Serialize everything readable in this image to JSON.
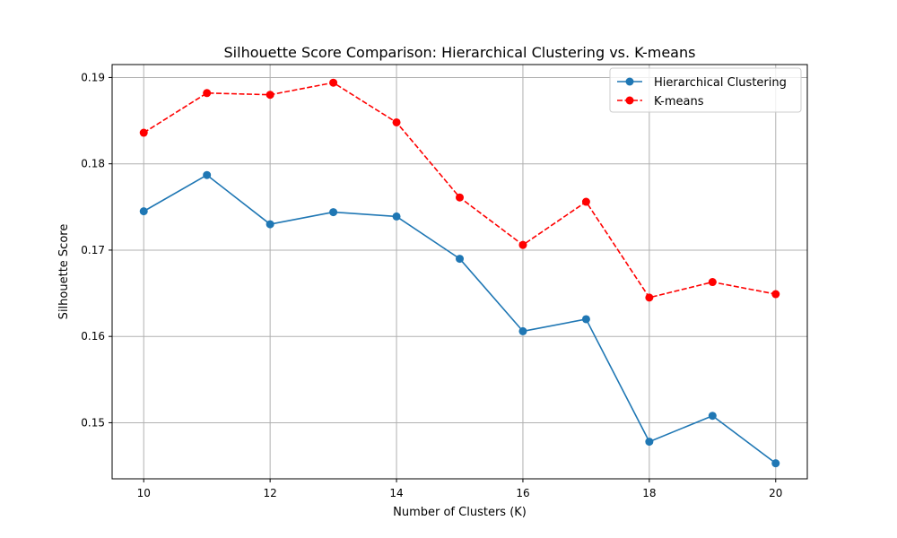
{
  "chart_data": {
    "type": "line",
    "title": "Silhouette Score Comparison: Hierarchical Clustering vs. K-means",
    "xlabel": "Number of Clusters (K)",
    "ylabel": "Silhouette Score",
    "x": [
      10,
      11,
      12,
      13,
      14,
      15,
      16,
      17,
      18,
      19,
      20
    ],
    "xlim": [
      9.5,
      20.5
    ],
    "ylim": [
      0.1435,
      0.1915
    ],
    "xticks": [
      10,
      12,
      14,
      16,
      18,
      20
    ],
    "xtick_labels": [
      "10",
      "12",
      "14",
      "16",
      "18",
      "20"
    ],
    "yticks": [
      0.15,
      0.16,
      0.17,
      0.18,
      0.19
    ],
    "ytick_labels": [
      "0.15",
      "0.16",
      "0.17",
      "0.18",
      "0.19"
    ],
    "grid": true,
    "legend_position": "top-right",
    "series": [
      {
        "name": "Hierarchical Clustering",
        "color": "#1f77b4",
        "line_style": "solid",
        "marker": "circle",
        "values": [
          0.1745,
          0.1787,
          0.173,
          0.1744,
          0.1739,
          0.169,
          0.1606,
          0.162,
          0.1478,
          0.1508,
          0.1453
        ]
      },
      {
        "name": "K-means",
        "color": "#ff0000",
        "line_style": "dashed",
        "marker": "circle",
        "values": [
          0.1836,
          0.1882,
          0.188,
          0.1894,
          0.1848,
          0.1761,
          0.1706,
          0.1756,
          0.1645,
          0.1663,
          0.1649
        ]
      }
    ]
  }
}
